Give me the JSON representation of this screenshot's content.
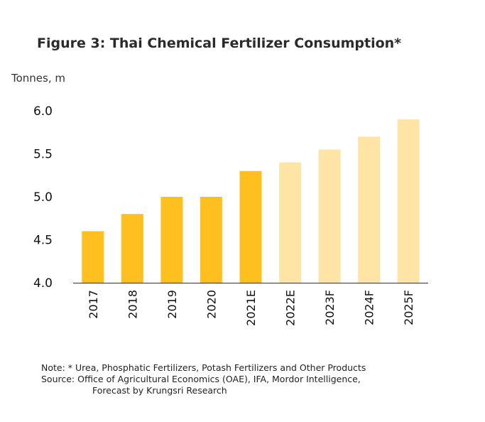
{
  "title": "Figure 3: Thai Chemical Fertilizer Consumption*",
  "unit_label": "Tonnes, m",
  "notes": {
    "note": "Note: * Urea, Phosphatic Fertilizers, Potash Fertilizers and Other Products",
    "source": "Source: Office of Agricultural Economics (OAE), IFA, Mordor Intelligence,",
    "source_cont": "Forecast by Krungsri Research"
  },
  "colors": {
    "actual": "#FFBF1F",
    "forecast": "#FEE5A6",
    "axis": "#333333"
  },
  "chart_data": {
    "type": "bar",
    "title": "Figure 3: Thai Chemical Fertilizer Consumption*",
    "ylabel": "Tonnes, m",
    "categories": [
      "2017",
      "2018",
      "2019",
      "2020",
      "2021E",
      "2022E",
      "2023F",
      "2024F",
      "2025F"
    ],
    "values": [
      4.6,
      4.8,
      5.0,
      5.0,
      5.3,
      5.4,
      5.55,
      5.7,
      5.9
    ],
    "forecast": [
      false,
      false,
      false,
      false,
      false,
      true,
      true,
      true,
      true
    ],
    "ylim": [
      4.0,
      6.0
    ],
    "yticks": [
      "4.0",
      "4.5",
      "5.0",
      "5.5",
      "6.0"
    ],
    "grid": false
  }
}
